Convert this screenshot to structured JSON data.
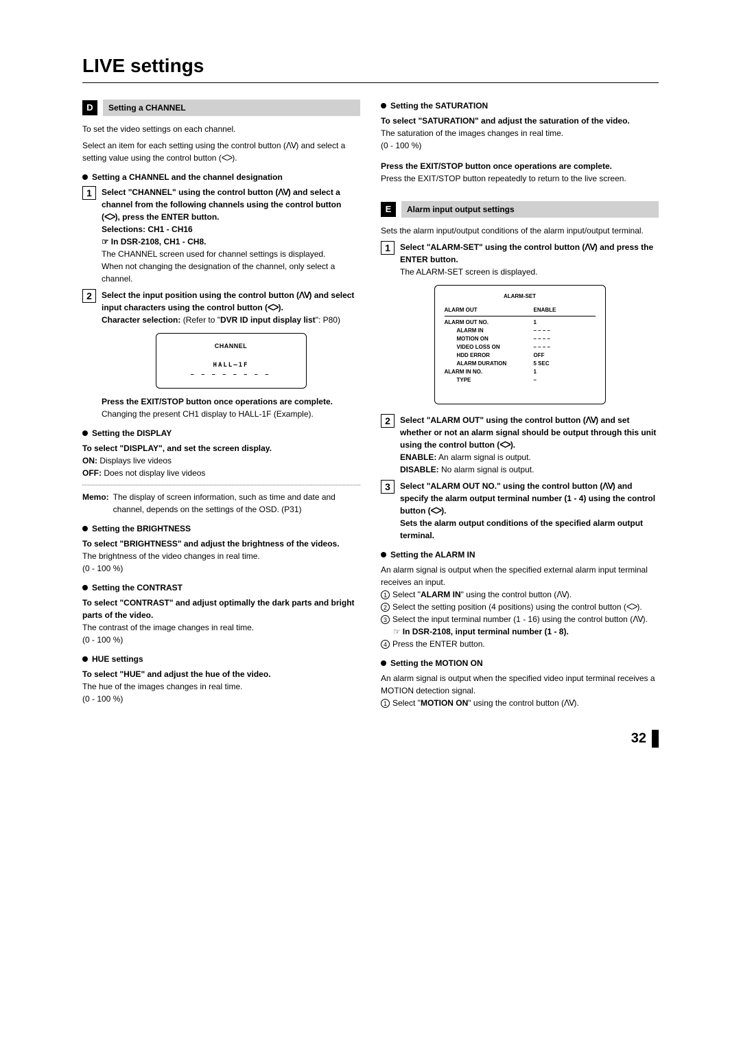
{
  "title": "LIVE settings",
  "page_number": "32",
  "sections": {
    "D": {
      "letter": "D",
      "title": "Setting a CHANNEL",
      "intro1": "To set the video settings on each channel.",
      "intro2_a": "Select an item for each setting using the control button (",
      "intro2_b": ") and select a setting value using the control button (",
      "sub1_title": "Setting a CHANNEL and the channel designation",
      "step1_a": "Select \"CHANNEL\" using the control button (",
      "step1_b": ") and select a channel from the following channels using the control button (",
      "step1_c": "), press the ENTER button.",
      "step1_sel": "Selections: CH1 - CH16",
      "step1_note": "In DSR-2108, CH1 - CH8.",
      "step1_p1": "The CHANNEL screen used for channel settings is displayed.",
      "step1_p2": "When not changing the designation of the channel, only select a channel.",
      "step2_a": "Select the input position using the control button (",
      "step2_b": ") and select input characters using the control button (",
      "step2_c": ").",
      "step2_char_a": "Character selection:",
      "step2_char_b": " (Refer to \"",
      "step2_char_c": "DVR ID input display list",
      "step2_char_d": "\": P80)",
      "diagram1_title": "CHANNEL",
      "diagram1_line": "HALL–1F",
      "diagram1_under": "– – – – – – – –",
      "step2_press": "Press the EXIT/STOP button once operations are complete.",
      "step2_change": "Changing the present CH1 display to HALL-1F (Example).",
      "display_title": "Setting the DISPLAY",
      "display_body": "To select \"DISPLAY\", and set the screen display.",
      "display_on_l": "ON:",
      "display_on_v": "Displays live videos",
      "display_off_l": "OFF:",
      "display_off_v": "Does not display live videos",
      "memo_l": "Memo:",
      "memo_v": "The display of screen information, such as time and date and channel, depends on the settings of the OSD. (P31)",
      "bright_title": "Setting the BRIGHTNESS",
      "bright_body": "To select \"BRIGHTNESS\" and adjust the brightness of the videos.",
      "bright_p1": "The brightness of the video changes in real time.",
      "bright_range": "(0 - 100 %)",
      "contrast_title": "Setting the CONTRAST",
      "contrast_body": "To select \"CONTRAST\" and adjust optimally the dark parts and bright parts of the video.",
      "contrast_p1": "The contrast of the image changes in real time.",
      "contrast_range": "(0 - 100 %)",
      "hue_title": "HUE settings",
      "hue_body": "To select \"HUE\" and adjust the hue of the video.",
      "hue_p1": "The hue of the images changes in real time.",
      "hue_range": "(0 - 100 %)",
      "sat_title": "Setting the SATURATION",
      "sat_body": "To select \"SATURATION\" and adjust the saturation of the video.",
      "sat_p1": "The saturation of the images changes in real time.",
      "sat_range": "(0 - 100 %)",
      "final_press": "Press the EXIT/STOP button once operations are complete.",
      "final_p": "Press the EXIT/STOP button repeatedly to return to the live screen."
    },
    "E": {
      "letter": "E",
      "title": "Alarm input output settings",
      "intro": "Sets the alarm input/output conditions of the alarm input/output terminal.",
      "step1_a": "Select \"ALARM-SET\" using the control button (",
      "step1_b": ") and press the ENTER button.",
      "step1_p": "The ALARM-SET screen is displayed.",
      "alarm_table_title": "ALARM-SET",
      "alarm_rows": [
        {
          "k": "ALARM OUT",
          "v": "ENABLE",
          "indent": ""
        },
        {
          "k": "ALARM OUT NO.",
          "v": "1",
          "indent": ""
        },
        {
          "k": "ALARM IN",
          "v": "– – – –",
          "indent": "indent1"
        },
        {
          "k": "MOTION ON",
          "v": "– – – –",
          "indent": "indent1"
        },
        {
          "k": "VIDEO LOSS ON",
          "v": "– – – –",
          "indent": "indent1"
        },
        {
          "k": "HDD ERROR",
          "v": "OFF",
          "indent": "indent1"
        },
        {
          "k": "ALARM DURATION",
          "v": "5 SEC",
          "indent": "indent1"
        },
        {
          "k": "ALARM IN NO.",
          "v": "1",
          "indent": ""
        },
        {
          "k": "TYPE",
          "v": "–",
          "indent": "indent1"
        }
      ],
      "step2_a": "Select \"ALARM OUT\" using the control button (",
      "step2_b": ") and set whether or not an alarm signal should be output through this unit using the control button (",
      "step2_c": ").",
      "step2_en_l": "ENABLE:",
      "step2_en_v": " An alarm signal is output.",
      "step2_dis_l": "DISABLE:",
      "step2_dis_v": " No alarm signal is output.",
      "step3_a": "Select \"ALARM OUT NO.\" using the control button (",
      "step3_b": ") and specify the alarm output terminal number (1 - 4) using the control button (",
      "step3_c": ").",
      "step3_p": "Sets the alarm output conditions of the specified alarm output terminal.",
      "alarmin_title": "Setting the ALARM IN",
      "alarmin_p": "An alarm signal is output when the specified external alarm input terminal receives an input.",
      "alarmin_1a": "Select \"",
      "alarmin_1b": "ALARM IN",
      "alarmin_1c": "\" using the control button (",
      "alarmin_2": "Select the setting position (4 positions) using the control button (",
      "alarmin_3": "Select the input terminal number (1 - 16) using the control button (",
      "alarmin_3note": "In DSR-2108, input terminal number (1 - 8).",
      "alarmin_4": "Press the ENTER button.",
      "motion_title": "Setting the MOTION ON",
      "motion_p": "An alarm signal is output when the specified video input terminal receives a MOTION detection signal.",
      "motion_1a": "Select \"",
      "motion_1b": "MOTION ON",
      "motion_1c": "\" using the control button ("
    }
  }
}
